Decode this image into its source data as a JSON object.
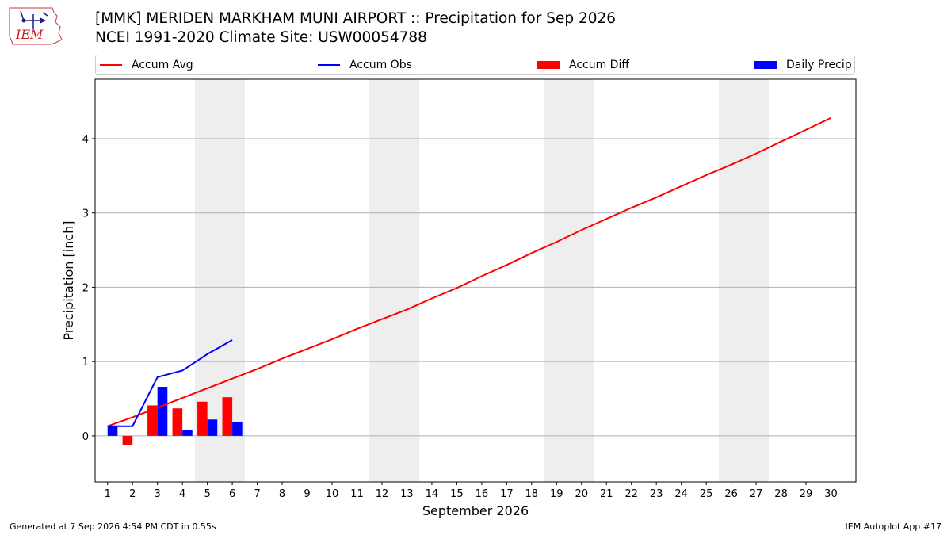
{
  "header": {
    "title_line1": "[MMK] MERIDEN MARKHAM MUNI AIRPORT :: Precipitation for Sep 2026",
    "title_line2": "NCEI 1991-2020 Climate Site: USW00054788"
  },
  "logo": {
    "text": "IEM"
  },
  "footer": {
    "generated": "Generated at 7 Sep 2026 4:54 PM CDT in 0.55s",
    "app": "IEM Autoplot App #17"
  },
  "legend": [
    {
      "label": "Accum Avg",
      "kind": "line",
      "color": "#ff0000"
    },
    {
      "label": "Accum Obs",
      "kind": "line",
      "color": "#0000ff"
    },
    {
      "label": "Accum Diff",
      "kind": "box",
      "color": "#ff0000"
    },
    {
      "label": "Daily Precip",
      "kind": "box",
      "color": "#0000ff"
    }
  ],
  "chart_data": {
    "type": "bar",
    "xlabel": "September 2026",
    "ylabel": "Precipitation [inch]",
    "xlim": [
      0.5,
      31.0
    ],
    "ylim": [
      -0.62,
      4.8
    ],
    "x_ticks": [
      1,
      2,
      3,
      4,
      5,
      6,
      7,
      8,
      9,
      10,
      11,
      12,
      13,
      14,
      15,
      16,
      17,
      18,
      19,
      20,
      21,
      22,
      23,
      24,
      25,
      26,
      27,
      28,
      29,
      30
    ],
    "y_ticks": [
      0,
      1,
      2,
      3,
      4
    ],
    "grid": "horizontal",
    "weekend_shading": [
      [
        4.5,
        6.5
      ],
      [
        11.5,
        13.5
      ],
      [
        18.5,
        20.5
      ],
      [
        25.5,
        27.5
      ]
    ],
    "shading_color": "#eeeeee",
    "accum_avg": {
      "name": "Accum Avg",
      "color": "#ff0000",
      "x": [
        1,
        2,
        3,
        4,
        5,
        6,
        7,
        8,
        9,
        10,
        11,
        12,
        13,
        14,
        15,
        16,
        17,
        18,
        19,
        20,
        21,
        22,
        23,
        24,
        25,
        26,
        27,
        28,
        29,
        30
      ],
      "values": [
        0.13,
        0.25,
        0.38,
        0.51,
        0.64,
        0.77,
        0.9,
        1.04,
        1.17,
        1.3,
        1.44,
        1.57,
        1.7,
        1.85,
        1.99,
        2.15,
        2.3,
        2.46,
        2.61,
        2.77,
        2.92,
        3.07,
        3.21,
        3.36,
        3.51,
        3.65,
        3.8,
        3.96,
        4.12,
        4.28
      ]
    },
    "accum_obs": {
      "name": "Accum Obs",
      "color": "#0000ff",
      "x": [
        1,
        2,
        3,
        4,
        5,
        6
      ],
      "values": [
        0.13,
        0.13,
        0.79,
        0.88,
        1.1,
        1.29
      ]
    },
    "accum_diff": {
      "name": "Accum Diff",
      "color": "#ff0000",
      "x": [
        1,
        2,
        3,
        4,
        5,
        6
      ],
      "values": [
        0.0,
        -0.12,
        0.41,
        0.37,
        0.46,
        0.52
      ]
    },
    "daily_precip": {
      "name": "Daily Precip",
      "color": "#0000ff",
      "x": [
        1,
        2,
        3,
        4,
        5,
        6
      ],
      "values": [
        0.13,
        0.0,
        0.66,
        0.08,
        0.22,
        0.19
      ]
    }
  }
}
